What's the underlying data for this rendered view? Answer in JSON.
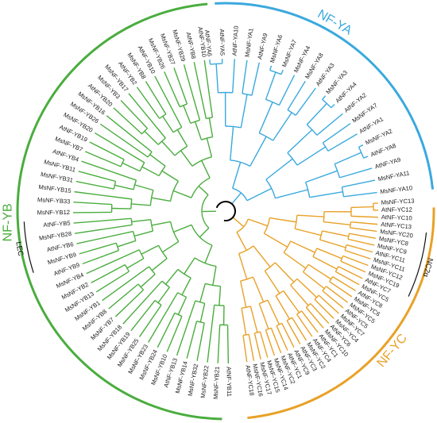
{
  "figure": {
    "clades": [
      {
        "name": "NF-YA",
        "color": "#3aa9de",
        "leaves": [
          "AtNF-YA6",
          "AtNF-YA5",
          "AtNF-YA10",
          "MsNF-YA1",
          "AtNF-YA9",
          "MsNF-YA6",
          "MsNF-YA7",
          "MsNF-YA4",
          "MsNF-YA8",
          "AtNF-YA3",
          "MsNF-YA3",
          "AtNF-YA4",
          "AtNF-YA2",
          "MsNF-YA7",
          "AtNF-YA1",
          "MsNF-YA2",
          "AtNF-YA8",
          "AtNF-YA9",
          "MsNF-YA11",
          "MsNF-YA10"
        ]
      },
      {
        "name": "NF-YC",
        "color": "#e8a127",
        "leaves": [
          "MsNF-YC13",
          "AtNF-YC12",
          "AtNF-YC10",
          "AtNF-YC13",
          "MsNF-YC20",
          "MsNF-YC8",
          "MsNF-YC9",
          "AtNF-YC11",
          "MsNF-YC11",
          "MsNF-YC12",
          "MsNF-YC19",
          "AtNF-YC7",
          "MsNF-YC5",
          "AtNF-YC8",
          "MsNF-YC6",
          "MsNF-YC5",
          "AtNF-YC5",
          "MsNF-YC7",
          "MsNF-YC4",
          "AtNF-YC6",
          "MsNF-YC10",
          "AtNF-YC1",
          "AtNF-YC4",
          "MsNF-YC2",
          "AtNF-YC3",
          "AtNF-YC9",
          "AtNF-YC1",
          "MsNF-YC2",
          "MsNF-YC14",
          "MsNF-YC15",
          "MsNF-YC17",
          "MsNF-YC16",
          "AtNF-YC18"
        ]
      },
      {
        "name": "NF-YB",
        "color": "#4aad3e",
        "leaves": [
          "AtNF-YB11",
          "MsNF-YB21",
          "MsNF-YB22",
          "MsNF-YB32",
          "MsNF-YB14",
          "AtNF-YB13",
          "MsNF-YB10",
          "MsNF-YB24",
          "MsNF-YB23",
          "MsNF-YB25",
          "MsNF-YB19",
          "MsNF-YB18",
          "MsNF-YB7",
          "MsNF-YB8",
          "MsNF-YB1",
          "MsNF-YB13",
          "MsNF-YB2",
          "MsNF-YB4",
          "AtNF-YB9",
          "MsNF-YB9",
          "AtNF-YB6",
          "MsNF-YB28",
          "AtNF-YB5",
          "MsNF-YB12",
          "MsNF-YB33",
          "MsNF-YB15",
          "MsNF-YB31",
          "MsNF-YB11",
          "AtNF-YB4",
          "MsNF-YB7",
          "AtNF-YB19",
          "MsNF-YB20",
          "MsNF-YB26",
          "MsNF-YB16",
          "AtNF-YB20",
          "MsNF-YB3",
          "MsNF-YB17",
          "AtNF-YB2",
          "MsNF-YB8",
          "AtNF-YB10",
          "MsNF-YB26",
          "MsNF-YB27",
          "MsNF-YB29",
          "AtNF-YB8",
          "AtNF-YB10"
        ]
      }
    ],
    "subclades": [
      {
        "name": "NC2α",
        "leaf_range": [
          4,
          10
        ],
        "clade": 1
      },
      {
        "name": "LEC",
        "leaf_range": [
          19,
          22
        ],
        "clade": 2
      }
    ],
    "colors": {
      "root": "#000000",
      "text": "#1a1a1a"
    }
  }
}
